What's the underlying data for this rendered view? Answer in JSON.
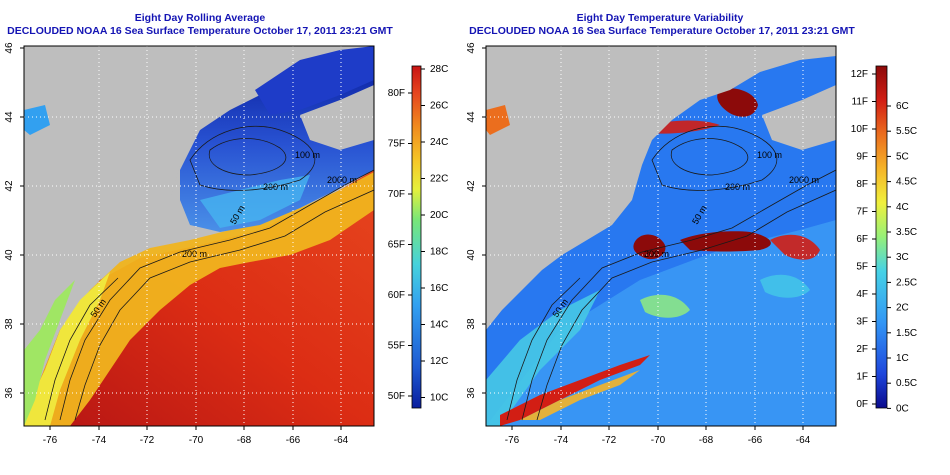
{
  "left_panel": {
    "title": "Eight Day Rolling Average",
    "subtitle": "DECLOUDED NOAA 16 Sea Surface Temperature October 17, 2011 23:21 GMT",
    "lat_ticks": [
      "46",
      "44",
      "42",
      "40",
      "38",
      "36"
    ],
    "lon_ticks": [
      "-76",
      "-74",
      "-72",
      "-70",
      "-68",
      "-66",
      "-64"
    ],
    "contour_labels": [
      "200 m",
      "2000 m",
      "200 m",
      "50 m",
      "100 m",
      "50 m"
    ],
    "colorbar_c": [
      "28C",
      "26C",
      "24C",
      "22C",
      "20C",
      "18C",
      "16C",
      "14C",
      "12C",
      "10C"
    ],
    "colorbar_f": [
      "80F",
      "75F",
      "70F",
      "65F",
      "60F",
      "55F",
      "50F"
    ],
    "colors": [
      "#0a1e9e",
      "#1e5ad2",
      "#32a0f0",
      "#46d2dc",
      "#78e678",
      "#e6f03c",
      "#f5c828",
      "#f08c1e",
      "#e6461e",
      "#c81414"
    ]
  },
  "right_panel": {
    "title": "Eight Day Temperature Variability",
    "subtitle": "DECLOUDED NOAA 16 Sea Surface Temperature October 17, 2011 23:21 GMT",
    "lat_ticks": [
      "46",
      "44",
      "42",
      "40",
      "38",
      "36"
    ],
    "lon_ticks": [
      "-76",
      "-74",
      "-72",
      "-70",
      "-68",
      "-66",
      "-64"
    ],
    "contour_labels": [
      "200 m",
      "2000 m",
      "200 m",
      "50 m",
      "100 m",
      "50 m"
    ],
    "colorbar_c": [
      "6C",
      "5.5C",
      "5C",
      "4.5C",
      "4C",
      "3.5C",
      "3C",
      "2.5C",
      "2C",
      "1.5C",
      "1C",
      "0.5C",
      "0C"
    ],
    "colorbar_f": [
      "12F",
      "11F",
      "10F",
      "9F",
      "8F",
      "7F",
      "6F",
      "5F",
      "4F",
      "3F",
      "2F",
      "1F",
      "0F"
    ],
    "colors": [
      "#0a0a8c",
      "#1e46dc",
      "#3296f5",
      "#46d2e6",
      "#96f078",
      "#f0f03c",
      "#f5b428",
      "#eb6e1e",
      "#d21e14",
      "#8c0a0a"
    ]
  },
  "land_color": "#bebebe"
}
